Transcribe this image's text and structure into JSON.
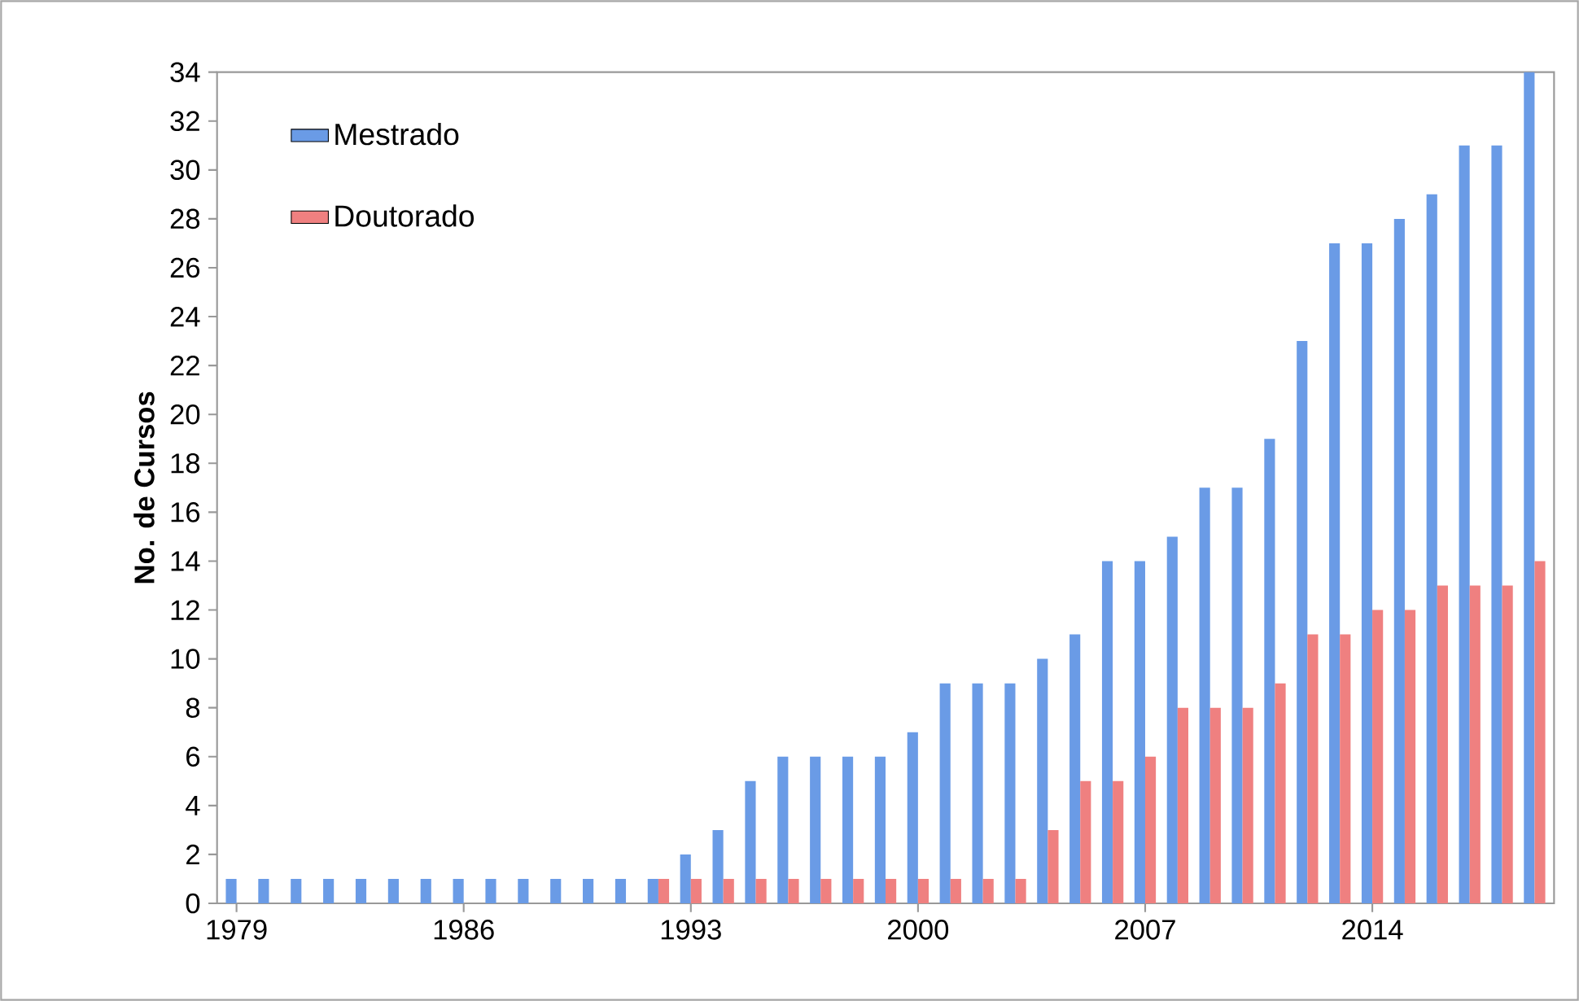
{
  "chart_data": {
    "type": "bar",
    "ylabel": "No. de Cursos",
    "categories": [
      "1979",
      null,
      null,
      null,
      null,
      null,
      null,
      "1986",
      null,
      null,
      null,
      null,
      null,
      null,
      "1993",
      null,
      null,
      null,
      null,
      null,
      null,
      "2000",
      null,
      null,
      null,
      null,
      null,
      null,
      "2007",
      null,
      null,
      null,
      null,
      null,
      null,
      "2014",
      null,
      null,
      null,
      null,
      null
    ],
    "series": [
      {
        "name": "Mestrado",
        "color": "#6a9be6",
        "values": [
          1,
          1,
          1,
          1,
          1,
          1,
          1,
          1,
          1,
          1,
          1,
          1,
          1,
          1,
          2,
          3,
          5,
          6,
          6,
          6,
          6,
          7,
          9,
          9,
          9,
          10,
          11,
          14,
          14,
          15,
          17,
          17,
          19,
          23,
          27,
          27,
          28,
          29,
          31,
          31,
          34
        ]
      },
      {
        "name": "Doutorado",
        "color": "#ef8080",
        "values": [
          0,
          0,
          0,
          0,
          0,
          0,
          0,
          0,
          0,
          0,
          0,
          0,
          0,
          1,
          1,
          1,
          1,
          1,
          1,
          1,
          1,
          1,
          1,
          1,
          1,
          3,
          5,
          5,
          6,
          8,
          8,
          8,
          9,
          11,
          11,
          12,
          12,
          13,
          13,
          13,
          14
        ]
      }
    ],
    "ylim": [
      0,
      34
    ],
    "yticks": [
      0,
      2,
      4,
      6,
      8,
      10,
      12,
      14,
      16,
      18,
      20,
      22,
      24,
      26,
      28,
      30,
      32,
      34
    ],
    "grid": false,
    "legend": "top left"
  }
}
